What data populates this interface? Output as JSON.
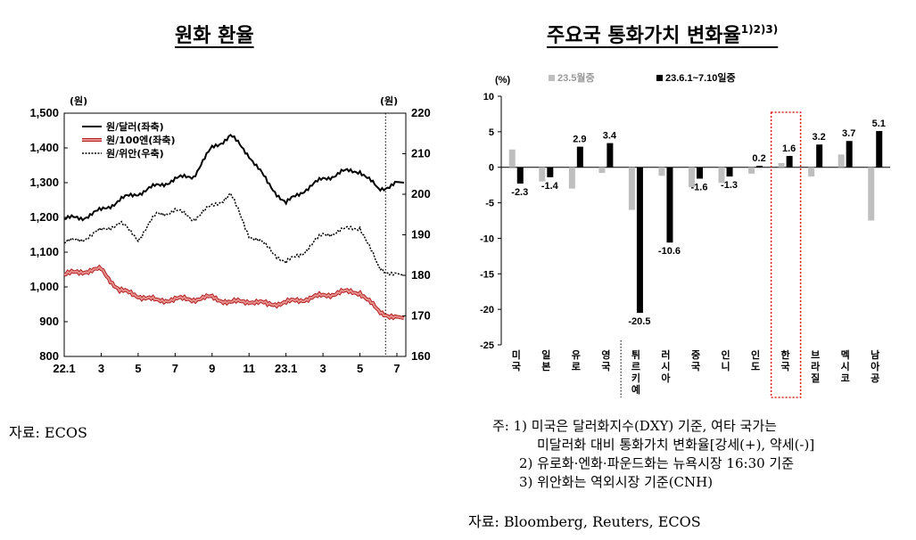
{
  "chart_data": [
    {
      "type": "line",
      "title": "원화 환율",
      "left_unit": "(원)",
      "right_unit": "(원)",
      "x_ticks": [
        "22.1",
        "3",
        "5",
        "7",
        "9",
        "11",
        "23.1",
        "3",
        "5",
        "7"
      ],
      "x_range": [
        "2022-01",
        "2023-07"
      ],
      "y_left_ticks": [
        "1,500",
        "1,400",
        "1,300",
        "1,200",
        "1,100",
        "1,000",
        "900",
        "800"
      ],
      "y_left_range": [
        800,
        1500
      ],
      "y_right_ticks": [
        "220",
        "210",
        "200",
        "190",
        "180",
        "170",
        "160"
      ],
      "y_right_range": [
        160,
        220
      ],
      "legend": [
        "원/달러(좌축)",
        "원/100엔(좌축)",
        "원/위안(우축)"
      ],
      "legend_position": "top-left",
      "series": [
        {
          "name": "원/달러(좌축)",
          "axis": "left",
          "color": "#000000",
          "x": [
            "2022-01",
            "2022-02",
            "2022-03",
            "2022-04",
            "2022-05",
            "2022-06",
            "2022-07",
            "2022-08",
            "2022-09",
            "2022-10",
            "2022-11",
            "2022-12",
            "2023-01",
            "2023-02",
            "2023-03",
            "2023-04",
            "2023-05",
            "2023-06",
            "2023-07"
          ],
          "values": [
            1195,
            1200,
            1220,
            1250,
            1270,
            1290,
            1310,
            1320,
            1400,
            1435,
            1380,
            1300,
            1240,
            1280,
            1310,
            1330,
            1335,
            1280,
            1300
          ]
        },
        {
          "name": "원/100엔(좌축)",
          "axis": "left",
          "color": "#e8918f",
          "x": [
            "2022-01",
            "2022-02",
            "2022-03",
            "2022-04",
            "2022-05",
            "2022-06",
            "2022-07",
            "2022-08",
            "2022-09",
            "2022-10",
            "2022-11",
            "2022-12",
            "2023-01",
            "2023-02",
            "2023-03",
            "2023-04",
            "2023-05",
            "2023-06",
            "2023-07"
          ],
          "values": [
            1035,
            1045,
            1050,
            990,
            975,
            960,
            965,
            965,
            970,
            955,
            960,
            950,
            955,
            965,
            975,
            985,
            985,
            930,
            910
          ]
        },
        {
          "name": "원/위안(우축)",
          "axis": "right",
          "color": "#000000",
          "x": [
            "2022-01",
            "2022-02",
            "2022-03",
            "2022-04",
            "2022-05",
            "2022-06",
            "2022-07",
            "2022-08",
            "2022-09",
            "2022-10",
            "2022-11",
            "2022-12",
            "2023-01",
            "2023-02",
            "2023-03",
            "2023-04",
            "2023-05",
            "2023-06",
            "2023-07"
          ],
          "values": [
            188,
            189,
            191,
            193,
            189,
            195,
            196,
            194,
            197,
            200,
            190,
            187,
            183,
            186,
            190,
            191,
            192,
            182,
            180
          ]
        }
      ],
      "vline_at": "2023-06",
      "grid": false
    },
    {
      "type": "bar",
      "title": "주요국 통화가치 변화율",
      "title_sup": "1)2)3)",
      "unit": "(%)",
      "categories": [
        "미국",
        "일본",
        "유로",
        "영국",
        "튀르키예",
        "러시아",
        "중국",
        "인니",
        "인도",
        "한국",
        "브라질",
        "멕시코",
        "남아공"
      ],
      "ylim": [
        -25,
        10
      ],
      "y_ticks": [
        "10",
        "5",
        "0",
        "-5",
        "-10",
        "-15",
        "-20",
        "-25"
      ],
      "legend_position": "top",
      "series": [
        {
          "name": "23.5월중",
          "color": "#bfbfbf",
          "values": [
            2.5,
            -2.0,
            -3.0,
            -0.8,
            -6.0,
            -1.2,
            -2.8,
            -2.2,
            -0.9,
            0.6,
            -1.3,
            1.8,
            -7.5
          ]
        },
        {
          "name": "23.6.1~7.10일중",
          "color": "#000000",
          "values": [
            -2.3,
            -1.4,
            2.9,
            3.4,
            -20.5,
            -10.6,
            -1.6,
            -1.3,
            0.2,
            1.6,
            3.2,
            3.7,
            5.1
          ]
        }
      ],
      "data_labels": [
        "-2.3",
        "-1.4",
        "2.9",
        "3.4",
        "-20.5",
        "-10.6",
        "-1.6",
        "-1.3",
        "0.2",
        "1.6",
        "3.2",
        "3.7",
        "5.1"
      ],
      "highlight_category": "한국",
      "grid": false
    }
  ],
  "sources": {
    "left": "자료: ECOS",
    "notes": [
      "주: 1) 미국은 달러화지수(DXY) 기준, 여타 국가는",
      "미달러화 대비 통화가치 변화율[강세(+), 약세(-)]",
      "2) 유로화·엔화·파운드화는 뉴욕시장 16:30 기준",
      "3) 위안화는 역외시장 기준(CNH)"
    ],
    "right": "자료: Bloomberg, Reuters, ECOS"
  }
}
